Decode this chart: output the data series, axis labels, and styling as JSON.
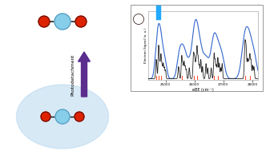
{
  "bg_color": "#ffffff",
  "arrow_color": "#5b2d8e",
  "light_blue_glow": "#b8d8f0",
  "ni_color": "#87CEEB",
  "ni_edge_color": "#5599bb",
  "o_color": "#dd2200",
  "o_edge_color": "#220000",
  "bond_color": "#111111",
  "blue_line_color": "#3366cc",
  "black_line_color": "#222222",
  "red_marker_color": "#ff5533",
  "cyan_lines_color": "#22aaff",
  "xaxis_label": "eBE (cm⁻¹)",
  "yaxis_label": "Electron Signal (a. u.)",
  "photodetach_label": "Photodetachment",
  "x_ticks": [
    25000,
    26000,
    27000,
    28000
  ],
  "xmin": 24400,
  "xmax": 28200,
  "fig_w": 3.32,
  "fig_h": 1.89,
  "dpi": 100
}
